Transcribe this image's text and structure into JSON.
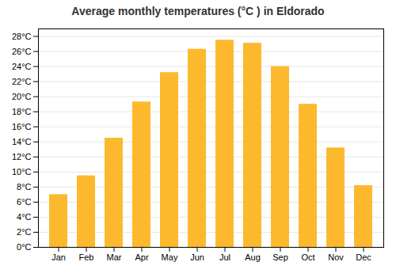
{
  "chart_data": {
    "type": "bar",
    "title": "Average monthly temperatures (°C ) in Eldorado",
    "categories": [
      "Jan",
      "Feb",
      "Mar",
      "Apr",
      "May",
      "Jun",
      "Jul",
      "Aug",
      "Sep",
      "Oct",
      "Nov",
      "Dec"
    ],
    "values": [
      7.0,
      9.5,
      14.5,
      19.3,
      23.2,
      26.3,
      27.5,
      27.1,
      24.0,
      19.0,
      13.2,
      8.2
    ],
    "color": "#FDB92E",
    "ylim": [
      0,
      29
    ],
    "yticks": [
      {
        "value": 0,
        "label": "0°C"
      },
      {
        "value": 2,
        "label": "2°C"
      },
      {
        "value": 4,
        "label": "4°C"
      },
      {
        "value": 6,
        "label": "6°C"
      },
      {
        "value": 8,
        "label": "8°C"
      },
      {
        "value": 10,
        "label": "10°C"
      },
      {
        "value": 12,
        "label": "12°C"
      },
      {
        "value": 14,
        "label": "14°C"
      },
      {
        "value": 16,
        "label": "16°C"
      },
      {
        "value": 18,
        "label": "18°C"
      },
      {
        "value": 20,
        "label": "20°C"
      },
      {
        "value": 22,
        "label": "22°C"
      },
      {
        "value": 24,
        "label": "24°C"
      },
      {
        "value": 26,
        "label": "26°C"
      },
      {
        "value": 28,
        "label": "28°C"
      }
    ],
    "grid": true
  }
}
